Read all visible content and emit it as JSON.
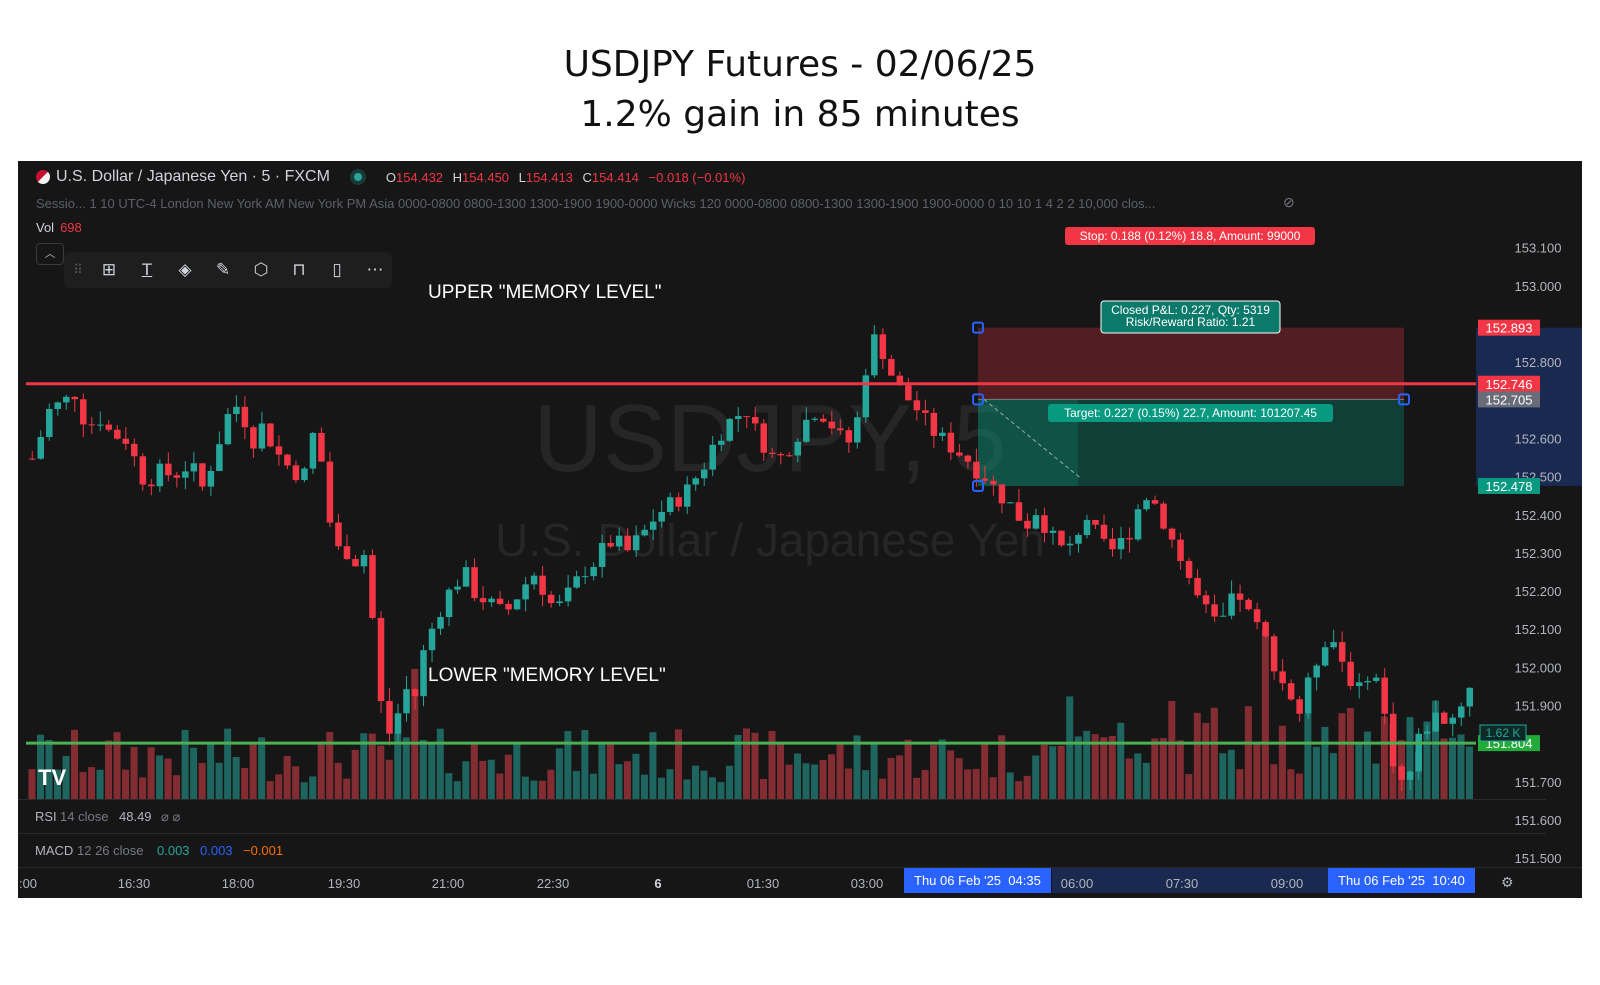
{
  "title_line1": "USDJPY Futures - 02/06/25",
  "title_line2": "1.2% gain in 85 minutes",
  "symbol": "U.S. Dollar / Japanese Yen · 5 · FXCM",
  "ohlc": {
    "o_label": "O",
    "o": "154.432",
    "h_label": "H",
    "h": "154.450",
    "l_label": "L",
    "l": "154.413",
    "c_label": "C",
    "c": "154.414",
    "change": "−0.018 (−0.01%)"
  },
  "sessions_text": "Sessio...  1 10 UTC-4 London New York AM New York PM Asia 0000-0800 0800-1300 1300-1900 1900-0000 Wicks 120 0000-0800 0800-1300 1300-1900 1900-0000 0 10 10 1 4 2 2 10,000 clos...",
  "vol_label": "Vol",
  "vol_value": "698",
  "toolbar_icons": [
    "drag-handle-icon",
    "layout-plus-icon",
    "text-icon",
    "paint-bucket-icon",
    "brush-icon",
    "settings-hex-icon",
    "lock-open-icon",
    "trash-icon",
    "more-icon"
  ],
  "watermark": {
    "line1": "USDJPY, 5",
    "line2": "U.S. Dollar / Japanese Yen"
  },
  "annotations": {
    "upper": "UPPER \"MEMORY LEVEL\"",
    "lower": "LOWER \"MEMORY LEVEL\""
  },
  "position": {
    "stop_label": "Stop: 0.188 (0.12%) 18.8, Amount: 99000",
    "pnl_line1": "Closed P&L: 0.227, Qty: 5319",
    "pnl_line2": "Risk/Reward Ratio: 1.21",
    "target_label": "Target: 0.227 (0.15%) 22.7, Amount: 101207.45",
    "stop_price": 152.893,
    "entry_price": 152.705,
    "target_price": 152.478
  },
  "price_badges": [
    {
      "text": "152.893",
      "price": 152.893,
      "color": "#f23645"
    },
    {
      "text": "152.746",
      "price": 152.746,
      "color": "#f23645"
    },
    {
      "text": "152.705",
      "price": 152.705,
      "color": "#6a6d78"
    },
    {
      "text": "152.478",
      "price": 152.478,
      "color": "#089981"
    },
    {
      "text": "151.804",
      "price": 151.804,
      "color": "#22ab3b"
    }
  ],
  "volume_badge": "1.62 K",
  "rsi": {
    "name": "RSI",
    "params": "14 close",
    "value": "48.49",
    "extra": "⌀ ⌀"
  },
  "macd": {
    "name": "MACD",
    "params": "12 26 close",
    "v1": "0.003",
    "v2": "0.003",
    "v3": "−0.001"
  },
  "time_axis": {
    "labels": [
      ":00",
      "16:30",
      "18:00",
      "19:30",
      "21:00",
      "22:30",
      "6",
      "01:30",
      "03:00",
      "06:00",
      "07:30",
      "09:00"
    ],
    "highlight1_date": "Thu 06 Feb '25",
    "highlight1_time": "04:35",
    "highlight2_date": "Thu 06 Feb '25",
    "highlight2_time": "10:40"
  },
  "chart_data": {
    "type": "candlestick",
    "title": "USDJPY Futures - 02/06/25",
    "subtitle": "1.2% gain in 85 minutes",
    "interval": "5",
    "y_ticks": [
      153.1,
      153.0,
      152.8,
      152.6,
      152.5,
      152.4,
      152.3,
      152.2,
      152.1,
      152.0,
      151.9,
      151.7,
      151.6,
      151.5
    ],
    "y_tick_labels": [
      "153.100",
      "153.000",
      "152.800",
      "152.600",
      "152.500",
      "152.400",
      "152.300",
      "152.200",
      "152.100",
      "152.000",
      "151.900",
      "151.700",
      "151.600",
      "151.500"
    ],
    "ylim": [
      151.42,
      153.12
    ],
    "levels": {
      "upper_memory": 152.746,
      "lower_memory": 151.804
    },
    "up_color": "#26a69a",
    "down_color": "#f23645",
    "close_path": [
      152.55,
      152.62,
      152.7,
      152.68,
      152.74,
      152.66,
      152.64,
      152.66,
      152.6,
      152.62,
      152.56,
      152.5,
      152.5,
      152.52,
      152.5,
      152.53,
      152.52,
      152.47,
      152.55,
      152.63,
      152.7,
      152.66,
      152.6,
      152.64,
      152.58,
      152.54,
      152.52,
      152.5,
      152.62,
      152.52,
      152.3,
      152.32,
      152.28,
      152.3,
      152.1,
      151.82,
      151.84,
      151.95,
      151.92,
      152.05,
      152.12,
      152.18,
      152.22,
      152.25,
      152.2,
      152.18,
      152.16,
      152.14,
      152.18,
      152.22,
      152.25,
      152.2,
      152.15,
      152.18,
      152.22,
      152.26,
      152.28,
      152.32,
      152.34,
      152.3,
      152.33,
      152.36,
      152.4,
      152.42,
      152.44,
      152.46,
      152.5,
      152.54,
      152.6,
      152.64,
      152.66,
      152.68,
      152.62,
      152.58,
      152.54,
      152.57,
      152.61,
      152.65,
      152.68,
      152.66,
      152.62,
      152.58,
      152.64,
      152.8,
      152.88,
      152.8,
      152.74,
      152.71,
      152.68,
      152.64,
      152.61,
      152.59,
      152.57,
      152.55,
      152.52,
      152.5,
      152.46,
      152.44,
      152.4,
      152.38,
      152.42,
      152.36,
      152.32,
      152.3,
      152.36,
      152.4,
      152.34,
      152.3,
      152.32,
      152.35,
      152.42,
      152.46,
      152.42,
      152.36,
      152.3,
      152.24,
      152.18,
      152.14,
      152.1,
      152.16,
      152.2,
      152.14,
      152.1,
      152.06,
      151.98,
      151.94,
      151.88,
      151.96,
      152.04,
      152.1,
      152.04,
      151.98,
      151.94,
      152.0,
      151.96,
      151.8,
      151.7,
      151.72,
      151.82,
      151.86,
      151.88,
      151.86,
      151.9,
      151.96
    ],
    "volume_ylim": [
      0,
      3600
    ]
  }
}
